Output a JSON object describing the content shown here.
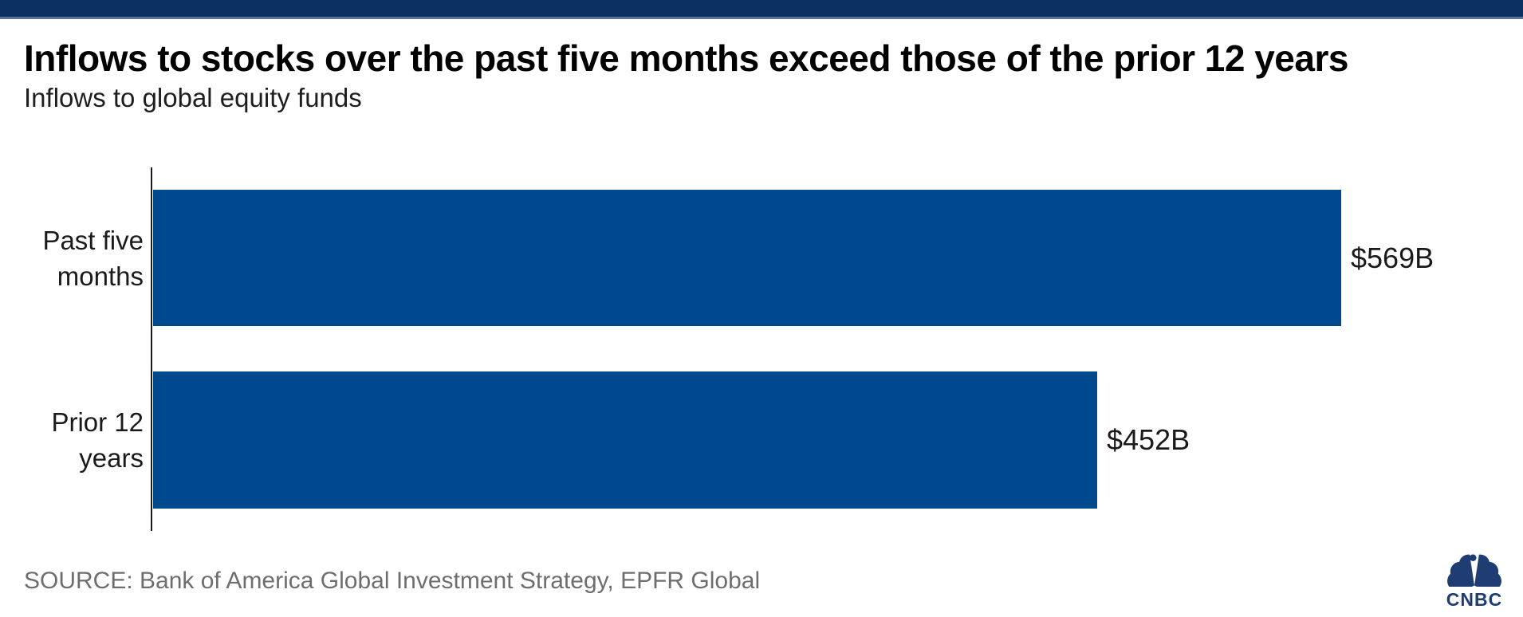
{
  "chart_data": {
    "type": "bar",
    "orientation": "horizontal",
    "title": "Inflows to stocks over the past five months exceed those of the prior 12 years",
    "subtitle": "Inflows to global equity funds",
    "categories": [
      "Past five months",
      "Prior 12 years"
    ],
    "values": [
      569,
      452
    ],
    "value_labels": [
      "$569B",
      "$452B"
    ],
    "unit": "billions USD",
    "xlabel": "",
    "ylabel": "",
    "xlim": [
      0,
      645
    ],
    "grid": false,
    "legend": false,
    "bar_color": "#00498f"
  },
  "footer": {
    "source": "SOURCE: Bank of America Global Investment Strategy, EPFR Global",
    "logo_text": "CNBC"
  },
  "colors": {
    "bar_blue": "#00498f",
    "ribbon_navy": "#0a3161",
    "ribbon_accent": "#5c7396",
    "title_black": "#000000",
    "source_gray": "#6e6e6e",
    "logo_navy": "#1f3d73",
    "axis_black": "#1a1a1a"
  }
}
